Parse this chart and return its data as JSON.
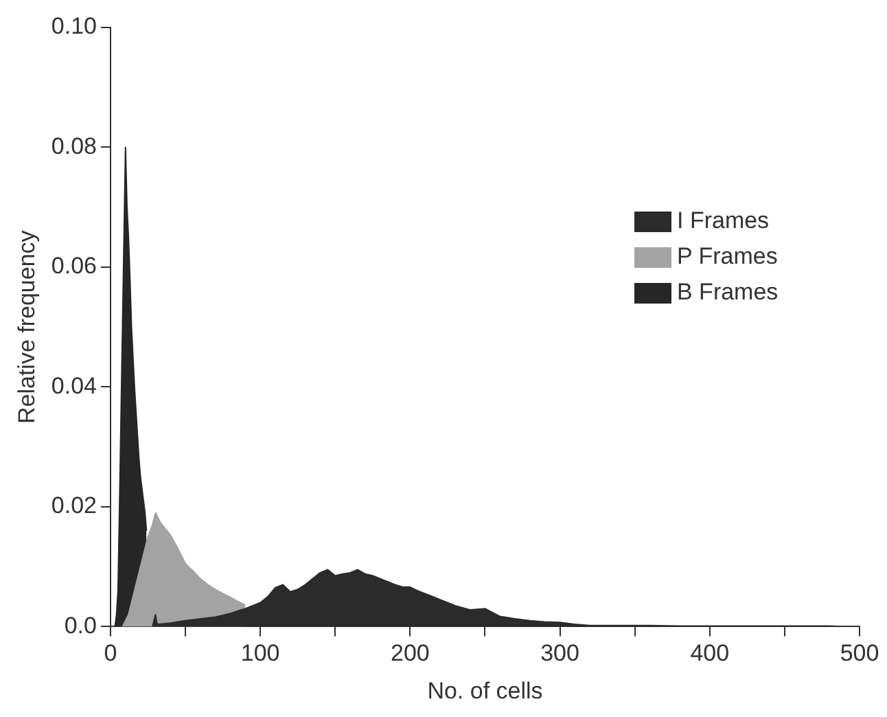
{
  "chart_data": {
    "type": "area",
    "xlabel": "No. of cells",
    "ylabel": "Relative frequency",
    "legend": "top right",
    "grid": false,
    "xlim": [
      0,
      500
    ],
    "xticks": [
      0,
      {
        "value": 50,
        "label": null
      },
      100,
      {
        "value": 150,
        "label": null
      },
      200,
      {
        "value": 250,
        "label": null
      },
      300,
      {
        "value": 350,
        "label": null
      },
      400,
      {
        "value": 450,
        "label": null
      },
      500
    ],
    "ylim": [
      0,
      0.1
    ],
    "yticks": [
      {
        "value": 0,
        "label": "0.0"
      },
      0.02,
      0.04,
      0.06,
      0.08,
      {
        "value": 0.1,
        "label": "0.10"
      }
    ],
    "series": [
      {
        "name": "I Frames",
        "color": "#2b2b2b",
        "x": [
          28,
          30,
          31,
          32,
          40,
          50,
          60,
          70,
          80,
          90,
          100,
          105,
          110,
          115,
          120,
          125,
          130,
          135,
          140,
          145,
          150,
          155,
          160,
          165,
          170,
          175,
          180,
          185,
          190,
          195,
          200,
          205,
          210,
          215,
          220,
          225,
          230,
          240,
          250,
          260,
          270,
          280,
          290,
          300,
          310,
          320,
          340,
          360,
          380,
          400,
          420,
          440,
          460,
          480,
          490
        ],
        "values": [
          0,
          0.002,
          0.0005,
          0.0004,
          0.0006,
          0.001,
          0.0013,
          0.0016,
          0.0022,
          0.003,
          0.004,
          0.005,
          0.0065,
          0.007,
          0.0058,
          0.0062,
          0.007,
          0.008,
          0.009,
          0.0095,
          0.0085,
          0.0088,
          0.009,
          0.0095,
          0.0088,
          0.0085,
          0.008,
          0.0075,
          0.007,
          0.0066,
          0.0066,
          0.006,
          0.0055,
          0.005,
          0.0045,
          0.004,
          0.0035,
          0.0028,
          0.003,
          0.0017,
          0.0013,
          0.001,
          0.0008,
          0.0007,
          0.0004,
          0.0002,
          0.0002,
          0.0002,
          0.0001,
          0.0001,
          0.0001,
          0.0001,
          0.0001,
          0.0001,
          0
        ]
      },
      {
        "name": "P Frames",
        "color": "#a3a3a3",
        "x": [
          8,
          12,
          15,
          20,
          25,
          28,
          30,
          33,
          36,
          40,
          45,
          50,
          55,
          60,
          65,
          70,
          75,
          80,
          85,
          90
        ],
        "values": [
          0,
          0.002,
          0.005,
          0.01,
          0.015,
          0.017,
          0.019,
          0.0175,
          0.0165,
          0.0153,
          0.013,
          0.0105,
          0.0093,
          0.008,
          0.007,
          0.0062,
          0.0055,
          0.0049,
          0.0042,
          0.0036
        ]
      },
      {
        "name": "B Frames",
        "color": "#262626",
        "x": [
          3,
          4,
          5,
          6,
          7,
          8,
          9,
          10,
          11,
          12,
          13,
          14,
          15,
          16,
          17,
          18,
          19,
          20,
          21,
          22,
          23,
          24
        ],
        "values": [
          0,
          0.002,
          0.006,
          0.02,
          0.035,
          0.05,
          0.065,
          0.08,
          0.07,
          0.065,
          0.058,
          0.05,
          0.045,
          0.04,
          0.036,
          0.032,
          0.028,
          0.025,
          0.023,
          0.021,
          0.019,
          0.016
        ]
      }
    ]
  }
}
